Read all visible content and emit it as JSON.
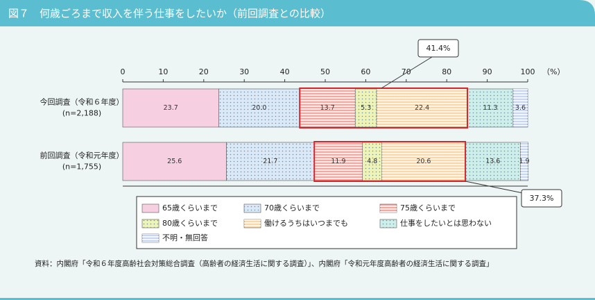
{
  "chart_data": {
    "type": "stacked_barh",
    "title": "図７　何歳ごろまで収入を伴う仕事をしたいか（前回調査との比較）",
    "categories": [
      "今回調査（令和６年度）",
      "前回調査（令和元年度）"
    ],
    "sample_sizes": [
      "(n=2,188)",
      "(n=1,755)"
    ],
    "x_unit": "（%）",
    "xlim": [
      0,
      100
    ],
    "xticks": [
      0,
      10,
      20,
      30,
      40,
      50,
      60,
      70,
      80,
      90,
      100
    ],
    "series": [
      {
        "name": "65歳くらいまで",
        "color": "#f6cfe0",
        "pattern": "none",
        "values": [
          23.7,
          25.6
        ]
      },
      {
        "name": "70歳くらいまで",
        "color": "#dbe8f6",
        "pattern": "dots",
        "values": [
          20.0,
          21.7
        ],
        "value_labels": [
          "20.0",
          "21.7"
        ]
      },
      {
        "name": "75歳くらいまで",
        "color": "#f4a9a0",
        "pattern": "stripes",
        "values": [
          13.7,
          11.9
        ]
      },
      {
        "name": "80歳くらいまで",
        "color": "#eef3b8",
        "pattern": "dots",
        "values": [
          5.3,
          4.8
        ]
      },
      {
        "name": "働けるうちはいつまでも",
        "color": "#fbd6a6",
        "pattern": "stripes",
        "values": [
          22.4,
          20.6
        ]
      },
      {
        "name": "仕事をしたいとは思わない",
        "color": "#cdeee9",
        "pattern": "dots",
        "values": [
          11.3,
          13.6
        ]
      },
      {
        "name": "不明・無回答",
        "color": "#c9d6f2",
        "pattern": "stripes",
        "values": [
          3.6,
          1.9
        ]
      }
    ],
    "annotations": [
      {
        "value": 41.4,
        "label": "41.4%"
      },
      {
        "value": 37.3,
        "label": "37.3%"
      }
    ],
    "source": "資料：内閣府「令和６年度高齢社会対策総合調査（高齢者の経済生活に関する調査）」、内閣府「令和元年度高齢者の経済生活に関する調査」"
  }
}
